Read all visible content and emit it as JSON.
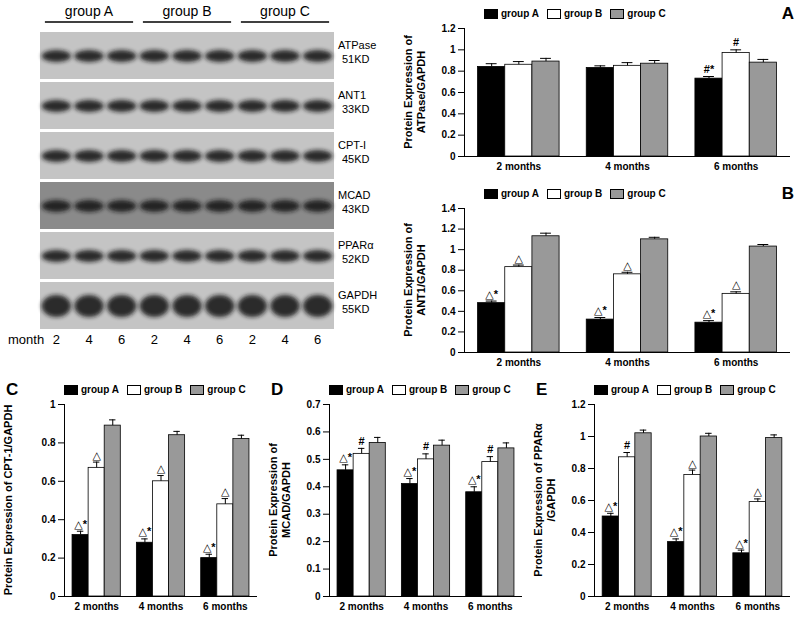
{
  "blot": {
    "groups": [
      "group A",
      "group B",
      "group C"
    ],
    "rows": [
      {
        "name": "ATPase",
        "size": "51KD"
      },
      {
        "name": "ANT1",
        "size": "33KD"
      },
      {
        "name": "CPT-I",
        "size": "45KD"
      },
      {
        "name": "MCAD",
        "size": "43KD"
      },
      {
        "name": "PPARα",
        "size": "52KD"
      },
      {
        "name": "GAPDH",
        "size": "55KD"
      }
    ],
    "lane_title": "month",
    "lanes": [
      "2",
      "4",
      "6",
      "2",
      "4",
      "6",
      "2",
      "4",
      "6"
    ]
  },
  "chart_data": [
    {
      "type": "bar",
      "title": "A",
      "ylabel": "Protein Expression of ATPase/GAPDH",
      "categories": [
        "2 months",
        "4 months",
        "6 months"
      ],
      "series": [
        {
          "name": "group A",
          "color": "#000000",
          "values": [
            0.84,
            0.83,
            0.73
          ],
          "errors": [
            0.03,
            0.02,
            0.02
          ],
          "annotations": [
            null,
            null,
            "#*"
          ]
        },
        {
          "name": "group B",
          "color": "#ffffff",
          "values": [
            0.86,
            0.85,
            0.97
          ],
          "errors": [
            0.03,
            0.03,
            0.03
          ],
          "annotations": [
            null,
            null,
            "#"
          ]
        },
        {
          "name": "group C",
          "color": "#999999",
          "values": [
            0.89,
            0.87,
            0.88
          ],
          "errors": [
            0.03,
            0.03,
            0.03
          ]
        }
      ],
      "ylim": [
        0,
        1.2
      ],
      "yticks": [
        0,
        0.2,
        0.4,
        0.6,
        0.8,
        1,
        1.2
      ],
      "legend": "top"
    },
    {
      "type": "bar",
      "title": "B",
      "ylabel": "Protein Expression of ANT1/GAPDH",
      "categories": [
        "2 months",
        "4 months",
        "6 months"
      ],
      "series": [
        {
          "name": "group A",
          "color": "#000000",
          "values": [
            0.48,
            0.32,
            0.29
          ],
          "errors": [
            0.02,
            0.02,
            0.02
          ],
          "annotations": [
            "△*",
            "△*",
            "△*"
          ]
        },
        {
          "name": "group B",
          "color": "#ffffff",
          "values": [
            0.83,
            0.76,
            0.57
          ],
          "errors": [
            0.02,
            0.02,
            0.02
          ],
          "annotations": [
            "△",
            "△",
            "△"
          ]
        },
        {
          "name": "group C",
          "color": "#999999",
          "values": [
            1.13,
            1.1,
            1.03
          ],
          "errors": [
            0.03,
            0.02,
            0.02
          ]
        }
      ],
      "ylim": [
        0,
        1.4
      ],
      "yticks": [
        0,
        0.2,
        0.4,
        0.6,
        0.8,
        1,
        1.2,
        1.4
      ],
      "legend": "top"
    },
    {
      "type": "bar",
      "title": "C",
      "ylabel": "Protein Expression of CPT-1/GAPDH",
      "categories": [
        "2 months",
        "4 months",
        "6 months"
      ],
      "series": [
        {
          "name": "group A",
          "color": "#000000",
          "values": [
            0.32,
            0.28,
            0.2
          ],
          "errors": [
            0.02,
            0.02,
            0.02
          ],
          "annotations": [
            "△*",
            "△*",
            "△*"
          ]
        },
        {
          "name": "group B",
          "color": "#ffffff",
          "values": [
            0.67,
            0.6,
            0.48
          ],
          "errors": [
            0.03,
            0.03,
            0.03
          ],
          "annotations": [
            "△",
            "△",
            "△"
          ]
        },
        {
          "name": "group C",
          "color": "#999999",
          "values": [
            0.89,
            0.84,
            0.82
          ],
          "errors": [
            0.03,
            0.02,
            0.02
          ]
        }
      ],
      "ylim": [
        0,
        1
      ],
      "yticks": [
        0,
        0.2,
        0.4,
        0.6,
        0.8,
        1
      ],
      "legend": "top"
    },
    {
      "type": "bar",
      "title": "D",
      "ylabel": "Protein Expression of MCAD/GAPDH",
      "categories": [
        "2 months",
        "4 months",
        "6 months"
      ],
      "series": [
        {
          "name": "group A",
          "color": "#000000",
          "values": [
            0.46,
            0.41,
            0.38
          ],
          "errors": [
            0.02,
            0.02,
            0.02
          ],
          "annotations": [
            "△*",
            "△*",
            "△*"
          ]
        },
        {
          "name": "group B",
          "color": "#ffffff",
          "values": [
            0.52,
            0.5,
            0.49
          ],
          "errors": [
            0.02,
            0.02,
            0.02
          ],
          "annotations": [
            "#",
            "#",
            "#"
          ]
        },
        {
          "name": "group C",
          "color": "#999999",
          "values": [
            0.56,
            0.55,
            0.54
          ],
          "errors": [
            0.02,
            0.02,
            0.02
          ]
        }
      ],
      "ylim": [
        0,
        0.7
      ],
      "yticks": [
        0,
        0.1,
        0.2,
        0.3,
        0.4,
        0.5,
        0.6,
        0.7
      ],
      "legend": "top"
    },
    {
      "type": "bar",
      "title": "E",
      "ylabel": "Protein Expression of PPARα /GAPDH",
      "categories": [
        "2 months",
        "4 months",
        "6 months"
      ],
      "series": [
        {
          "name": "group A",
          "color": "#000000",
          "values": [
            0.5,
            0.34,
            0.27
          ],
          "errors": [
            0.02,
            0.02,
            0.02
          ],
          "annotations": [
            "△*",
            "△*",
            "△*"
          ]
        },
        {
          "name": "group B",
          "color": "#ffffff",
          "values": [
            0.87,
            0.76,
            0.59
          ],
          "errors": [
            0.03,
            0.03,
            0.02
          ],
          "annotations": [
            "#",
            "△",
            "△"
          ]
        },
        {
          "name": "group C",
          "color": "#999999",
          "values": [
            1.02,
            1.0,
            0.99
          ],
          "errors": [
            0.02,
            0.02,
            0.02
          ]
        }
      ],
      "ylim": [
        0,
        1.2
      ],
      "yticks": [
        0,
        0.2,
        0.4,
        0.6,
        0.8,
        1,
        1.2
      ],
      "legend": "top"
    }
  ]
}
